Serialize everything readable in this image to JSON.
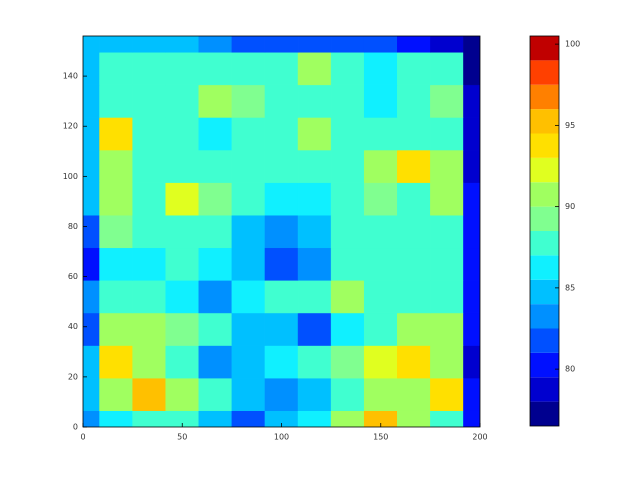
{
  "chart_data": {
    "type": "contour",
    "x": [
      0,
      16.67,
      33.33,
      50,
      66.67,
      83.33,
      100,
      116.67,
      133.33,
      150,
      166.67,
      183.33,
      200
    ],
    "y": [
      0,
      13,
      26,
      39,
      52,
      65,
      78,
      91,
      104,
      117,
      130,
      143,
      156
    ],
    "z": [
      [
        83,
        86,
        88,
        87,
        84,
        82,
        84,
        86,
        90,
        95,
        90,
        88,
        80
      ],
      [
        84,
        90,
        95,
        91,
        87,
        84,
        83,
        84,
        88,
        90,
        91,
        94,
        80
      ],
      [
        84,
        93,
        90,
        88,
        83,
        85,
        86,
        87,
        89,
        92,
        93,
        91,
        79
      ],
      [
        82,
        90,
        91,
        89,
        87,
        85,
        85,
        82,
        86,
        88,
        90,
        90,
        80
      ],
      [
        83,
        88,
        87,
        86,
        83,
        86,
        88,
        87,
        90,
        88,
        88,
        88,
        80
      ],
      [
        80,
        86,
        86,
        87,
        86,
        84,
        81,
        83,
        87,
        88,
        88,
        87,
        80
      ],
      [
        82,
        89,
        88,
        88,
        87,
        85,
        83,
        84,
        87,
        88,
        88,
        87,
        80
      ],
      [
        84,
        91,
        88,
        92,
        89,
        87,
        86,
        86,
        88,
        89,
        88,
        91,
        80
      ],
      [
        84,
        91,
        88,
        88,
        87,
        87,
        87,
        87,
        88,
        91,
        93,
        91,
        79
      ],
      [
        85,
        93,
        88,
        88,
        86,
        88,
        88,
        90,
        88,
        88,
        87,
        87,
        79
      ],
      [
        85,
        88,
        88,
        88,
        90,
        89,
        88,
        88,
        88,
        86,
        88,
        89,
        78
      ],
      [
        85,
        87,
        88,
        88,
        87,
        87,
        88,
        90,
        87,
        86,
        87,
        87,
        77
      ],
      [
        84,
        84,
        85,
        84,
        83,
        82,
        81,
        81,
        82,
        81,
        80,
        78,
        76
      ]
    ],
    "xlim": [
      0,
      200
    ],
    "ylim": [
      0,
      156
    ],
    "xticks": [
      0,
      50,
      100,
      150,
      200
    ],
    "yticks": [
      0,
      20,
      40,
      60,
      80,
      100,
      120,
      140
    ],
    "levels": [
      76.5,
      78,
      79.5,
      81,
      82.5,
      84,
      85.5,
      87,
      88.5,
      90,
      91.5,
      93,
      94.5,
      96,
      97.5,
      99,
      100.5
    ],
    "colors": [
      "#00008f",
      "#0000cf",
      "#0010ff",
      "#0050ff",
      "#0090ff",
      "#00c0ff",
      "#10f0ff",
      "#40ffd0",
      "#80ff90",
      "#a0ff60",
      "#e0ff20",
      "#ffe000",
      "#ffc000",
      "#ff8000",
      "#ff4000",
      "#c00000"
    ],
    "colorbar_ticks": [
      80,
      85,
      90,
      95,
      100
    ]
  }
}
